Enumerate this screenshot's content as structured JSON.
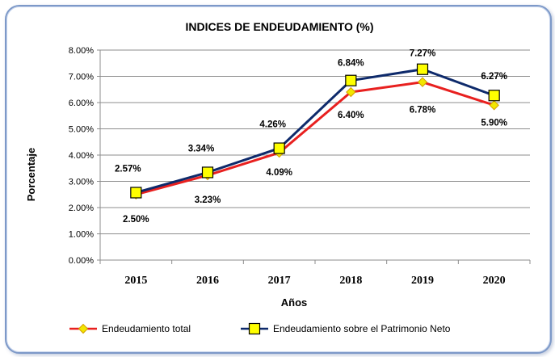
{
  "chart_data": {
    "type": "line",
    "title": "INDICES DE ENDEUDAMIENTO (%)",
    "xlabel": "Años",
    "ylabel": "Porcentaje",
    "categories": [
      "2015",
      "2016",
      "2017",
      "2018",
      "2019",
      "2020"
    ],
    "ylim": [
      0,
      8
    ],
    "y_ticks": [
      "0.00%",
      "1.00%",
      "2.00%",
      "3.00%",
      "4.00%",
      "5.00%",
      "6.00%",
      "7.00%",
      "8.00%"
    ],
    "grid": true,
    "legend_position": "bottom",
    "series": [
      {
        "name": "Endeudamiento total",
        "values": [
          2.5,
          3.23,
          4.09,
          6.4,
          6.78,
          5.9
        ],
        "labels": [
          "2.50%",
          "3.23%",
          "4.09%",
          "6.40%",
          "6.78%",
          "5.90%"
        ],
        "color": "#e8201f",
        "marker": "diamond",
        "marker_color": "#f2e600"
      },
      {
        "name": "Endeudamiento sobre el Patrimonio Neto",
        "values": [
          2.57,
          3.34,
          4.26,
          6.84,
          7.27,
          6.27
        ],
        "labels": [
          "2.57%",
          "3.34%",
          "4.26%",
          "6.84%",
          "7.27%",
          "6.27%"
        ],
        "color": "#0e2a6b",
        "marker": "square",
        "marker_color": "#ffff00"
      }
    ]
  }
}
